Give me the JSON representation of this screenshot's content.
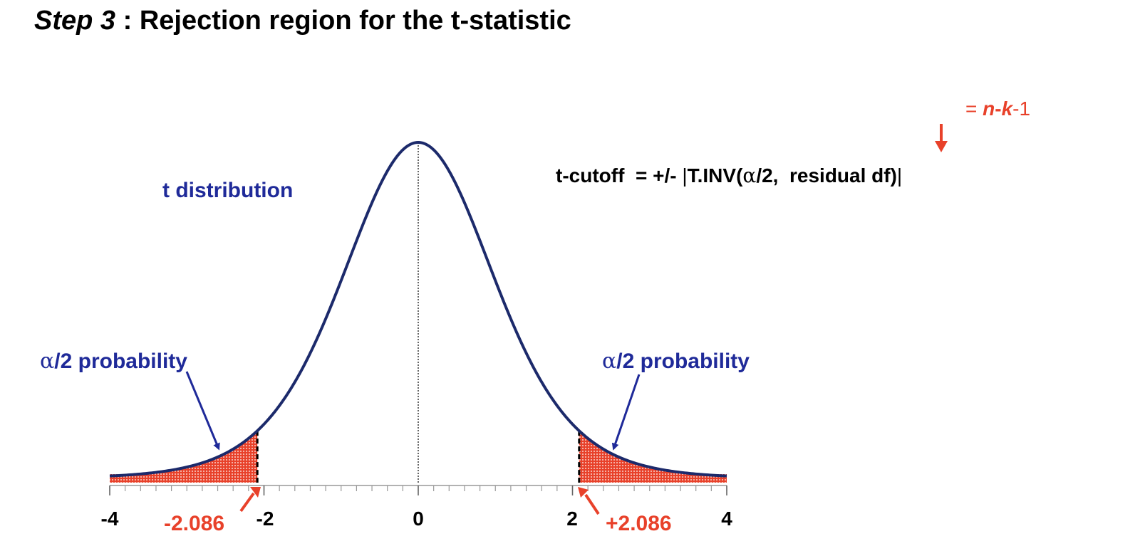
{
  "title": {
    "step": "Step 3",
    "rest": " : Rejection region for the t-statistic"
  },
  "curve_label": "t distribution",
  "tail_label_left": {
    "alpha": "α",
    "rest": "/2 probability"
  },
  "tail_label_right": {
    "alpha": "α",
    "rest": "/2 probability"
  },
  "formula": {
    "prefix": "t-cutoff  = +/- ",
    "func": "T.INV(",
    "alpha": "α",
    "args": "/2,  residual df)"
  },
  "df_note": {
    "eq": "= ",
    "n": "n",
    "dash1": "-",
    "k": "k",
    "rest": "-1"
  },
  "cutoffs": {
    "left": "-2.086",
    "right": "+2.086"
  },
  "axis": {
    "ticks": [
      "-4",
      "-2",
      "0",
      "2",
      "4"
    ]
  },
  "chart_data": {
    "type": "area",
    "distribution": "t",
    "x_range": [
      -4,
      4
    ],
    "tick_labels": [
      -4,
      -2,
      0,
      2,
      4
    ],
    "critical_values": [
      -2.086,
      2.086
    ],
    "shaded_regions": [
      [
        -4,
        -2.086
      ],
      [
        2.086,
        4
      ]
    ],
    "colors": {
      "curve": "#1c2a6b",
      "shade": "#e8412a",
      "text_blue": "#1f2a99",
      "text_red": "#e8412a"
    }
  }
}
